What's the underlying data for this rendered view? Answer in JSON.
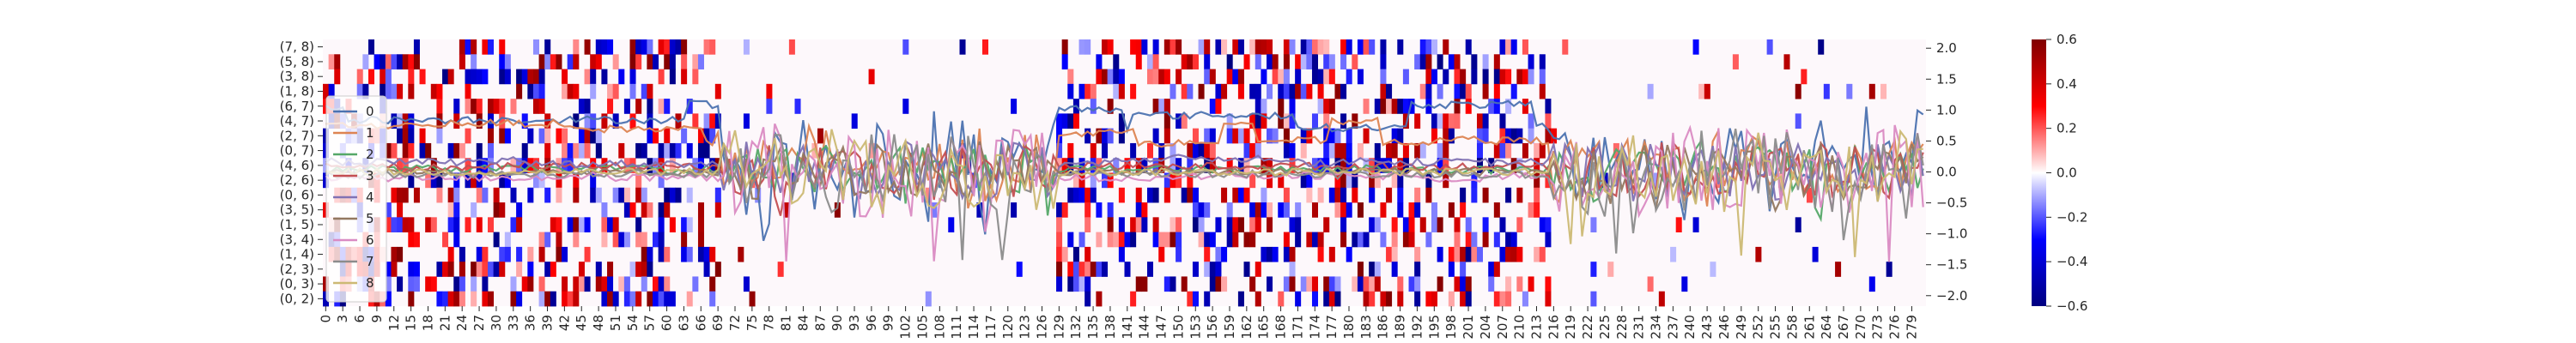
{
  "chart_data": {
    "type": "heatmap",
    "title": "",
    "xlabel": "",
    "ylabel": "",
    "grid": false,
    "legend_position": "left",
    "heatmap": {
      "x_tick_labels": [
        "0",
        "3",
        "6",
        "9",
        "12",
        "15",
        "18",
        "21",
        "24",
        "27",
        "30",
        "33",
        "36",
        "39",
        "42",
        "45",
        "48",
        "51",
        "54",
        "57",
        "60",
        "63",
        "66",
        "69",
        "72",
        "75",
        "78",
        "81",
        "84",
        "87",
        "90",
        "93",
        "96",
        "99",
        "102",
        "105",
        "108",
        "111",
        "114",
        "117",
        "120",
        "123",
        "126",
        "129",
        "132",
        "135",
        "138",
        "141",
        "144",
        "147",
        "150",
        "153",
        "156",
        "159",
        "162",
        "165",
        "168",
        "171",
        "174",
        "177",
        "180",
        "183",
        "186",
        "189",
        "192",
        "195",
        "198",
        "201",
        "204",
        "207",
        "210",
        "213",
        "216",
        "219",
        "222",
        "225",
        "228",
        "231",
        "234",
        "237",
        "240",
        "243",
        "246",
        "249",
        "252",
        "255",
        "258",
        "261",
        "264",
        "267",
        "270",
        "273",
        "276",
        "279"
      ],
      "y_tick_labels": [
        "(7, 8)",
        "(5, 8)",
        "(3, 8)",
        "(1, 8)",
        "(6, 7)",
        "(4, 7)",
        "(2, 7)",
        "(0, 7)",
        "(4, 6)",
        "(2, 6)",
        "(0, 6)",
        "(3, 5)",
        "(1, 5)",
        "(3, 4)",
        "(1, 4)",
        "(2, 3)",
        "(0, 3)",
        "(0, 2)"
      ],
      "n_columns": 282,
      "n_rows": 18,
      "colormap": "seismic",
      "active_column_ranges": [
        [
          0,
          69
        ],
        [
          129,
          215
        ]
      ],
      "sparse_column_ranges": [
        [
          70,
          128
        ],
        [
          216,
          281
        ]
      ]
    },
    "colorbar": {
      "range": [
        -0.6,
        0.6
      ],
      "tick_values": [
        0.6,
        0.4,
        0.2,
        0.0,
        -0.2,
        -0.4,
        -0.6
      ],
      "tick_labels": [
        "0.6",
        "0.4",
        "0.2",
        "0.0",
        "−0.2",
        "−0.4",
        "−0.6"
      ]
    },
    "line_axis": {
      "ylim": [
        -2.1,
        2.1
      ],
      "tick_values": [
        2.0,
        1.5,
        1.0,
        0.5,
        0.0,
        -0.5,
        -1.0,
        -1.5,
        -2.0
      ],
      "tick_labels": [
        "2.0",
        "1.5",
        "1.0",
        "0.5",
        "0.0",
        "−0.5",
        "−1.0",
        "−1.5",
        "−2.0"
      ]
    },
    "series": [
      {
        "name": "0",
        "color": "#4c72b0",
        "base": 1.05,
        "regime": 0.8,
        "amp": 0.55
      },
      {
        "name": "1",
        "color": "#dd8452",
        "base": 0.75,
        "regime": 0.5,
        "amp": 0.45
      },
      {
        "name": "2",
        "color": "#55a868",
        "base": 0.05,
        "regime": 0.2,
        "amp": 0.4
      },
      {
        "name": "3",
        "color": "#c44e52",
        "base": 0.1,
        "regime": 0.1,
        "amp": 0.45
      },
      {
        "name": "4",
        "color": "#8172b3",
        "base": 0.2,
        "regime": 0.1,
        "amp": 0.5
      },
      {
        "name": "5",
        "color": "#937860",
        "base": 0.0,
        "regime": 0.1,
        "amp": 0.45
      },
      {
        "name": "6",
        "color": "#da8bc3",
        "base": -0.1,
        "regime": 0.1,
        "amp": 0.75
      },
      {
        "name": "7",
        "color": "#8c8c8c",
        "base": -0.05,
        "regime": 0.1,
        "amp": 0.7
      },
      {
        "name": "8",
        "color": "#ccb974",
        "base": 0.0,
        "regime": 0.1,
        "amp": 0.65
      }
    ]
  }
}
